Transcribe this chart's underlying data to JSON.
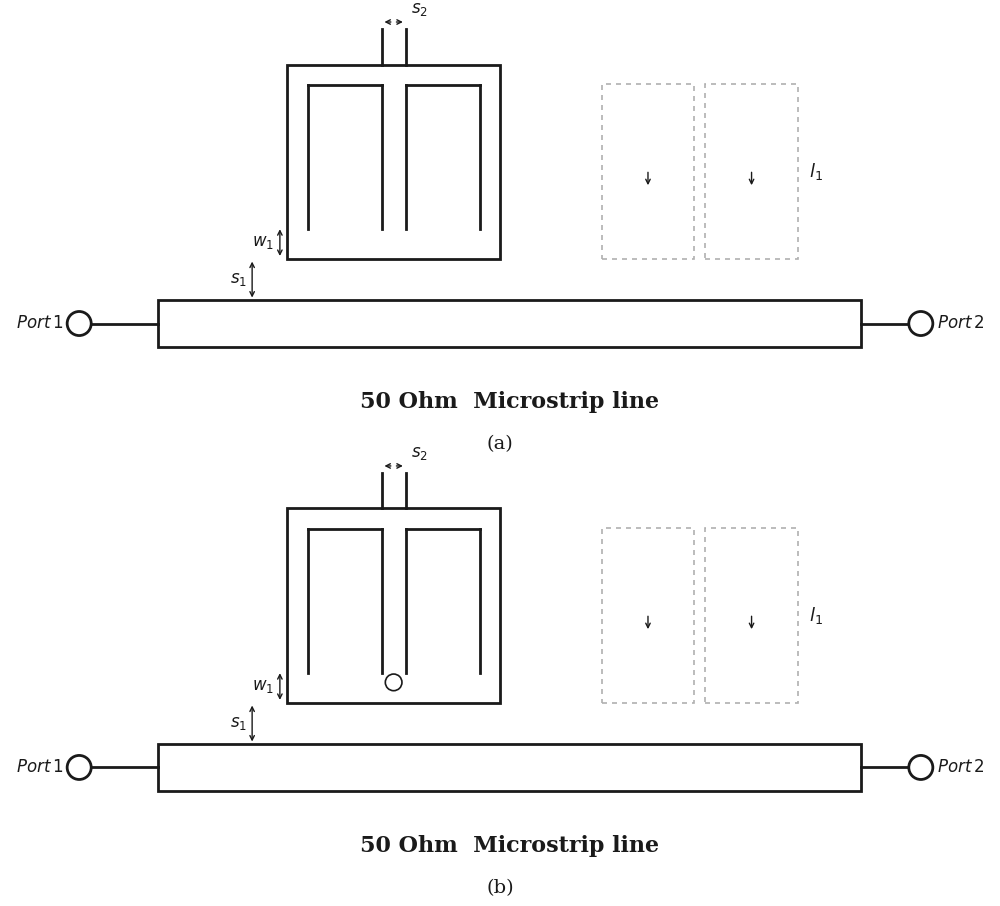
{
  "bg_color": "#ffffff",
  "line_color": "#1a1a1a",
  "fig_width": 10.0,
  "fig_height": 9.06,
  "label_fontsize": 12,
  "port_fontsize": 12,
  "sub_label_fontsize": 14,
  "microstrip_label_fontsize": 16,
  "panels": [
    {
      "label": "(a)",
      "has_gap_circle": false
    },
    {
      "label": "(b)",
      "has_gap_circle": true
    }
  ]
}
